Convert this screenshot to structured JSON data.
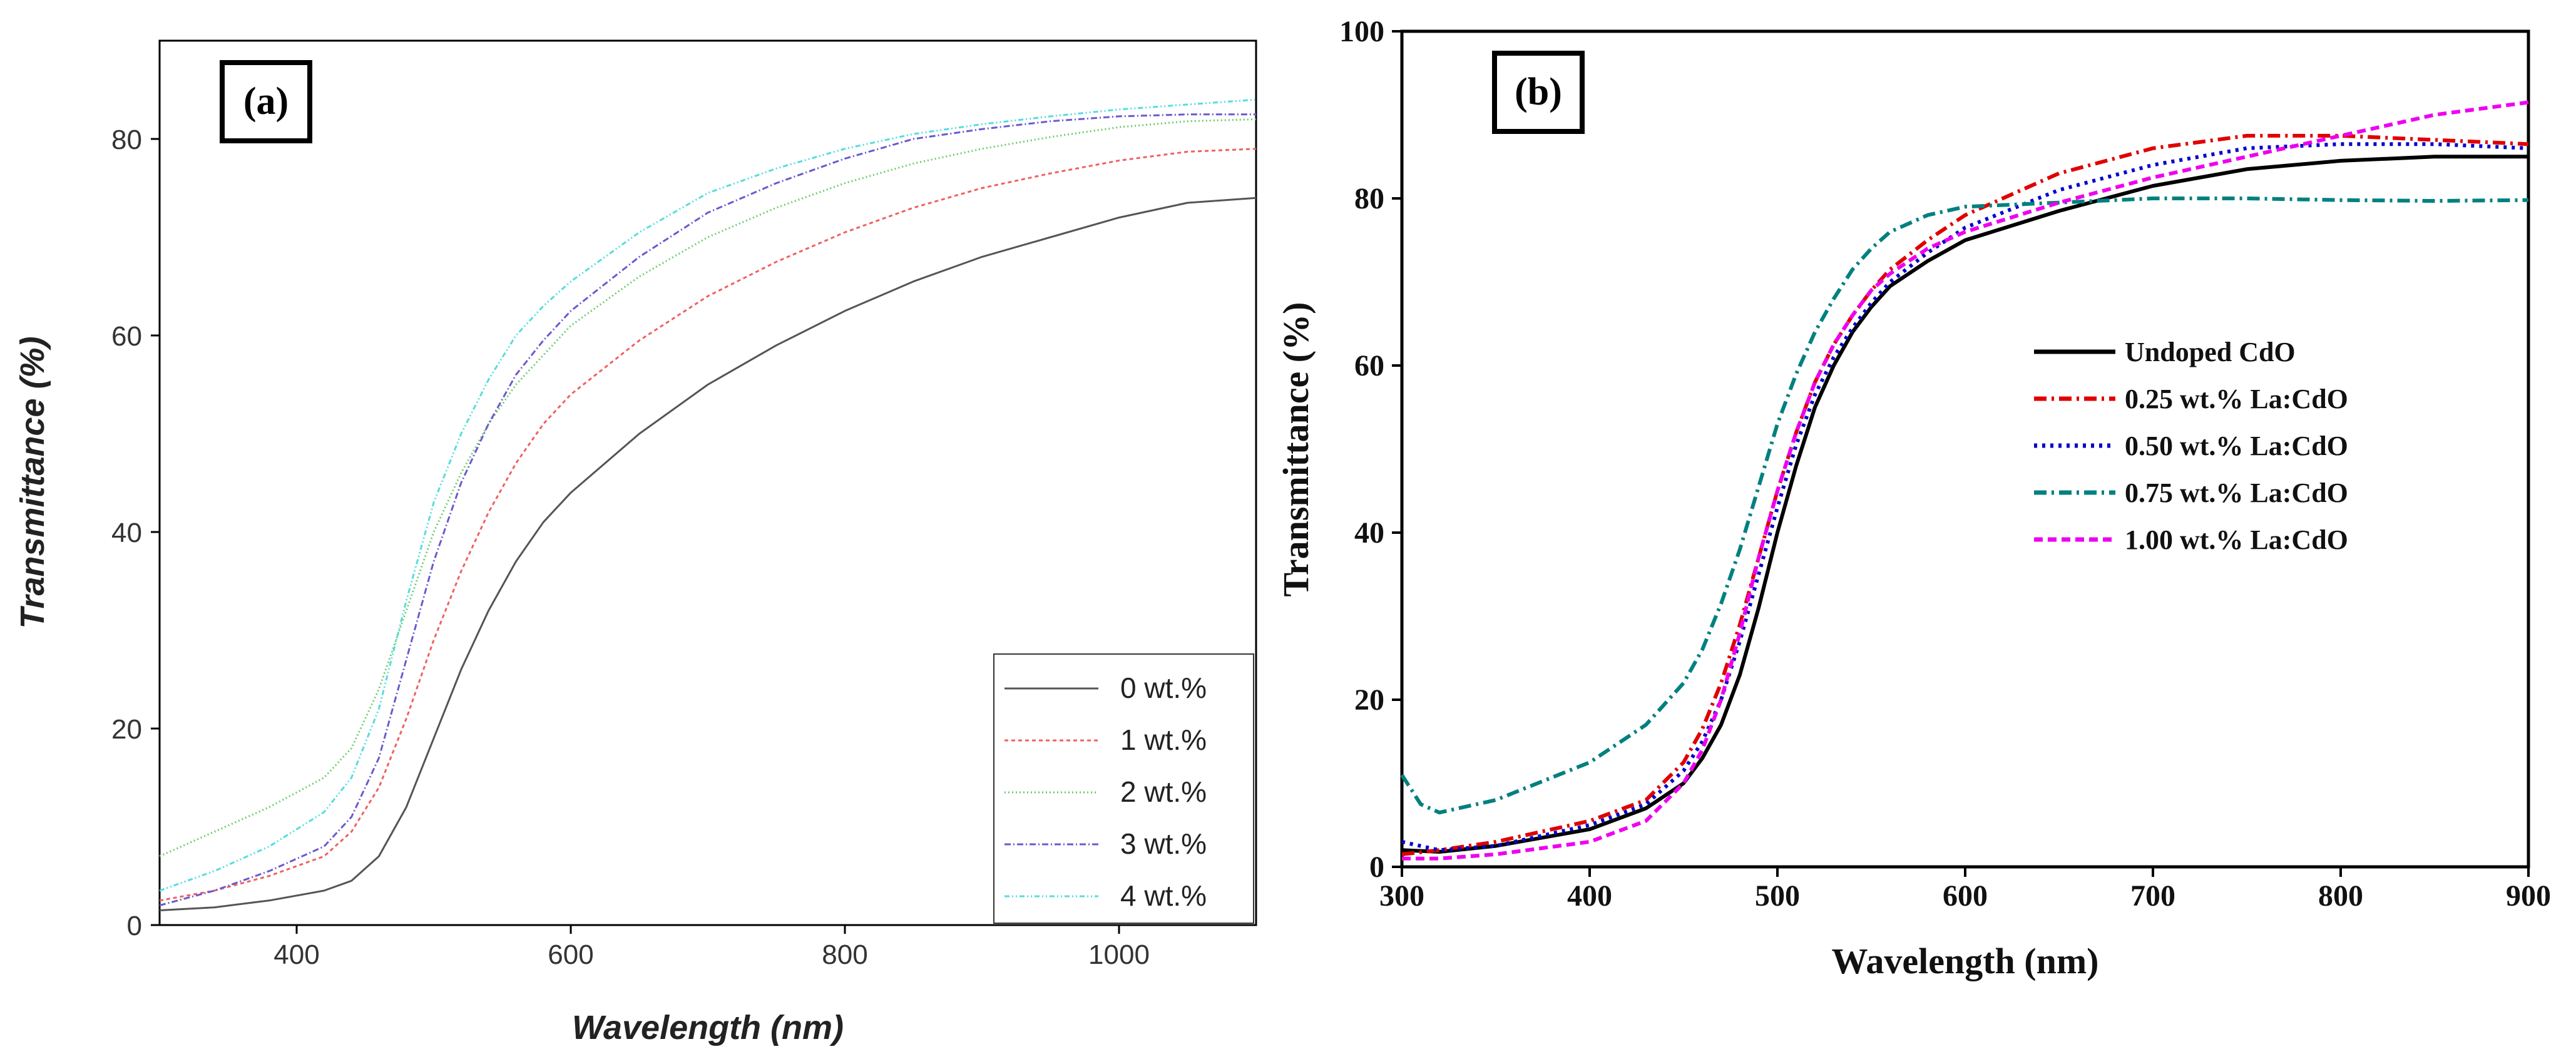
{
  "chart_data": [
    {
      "type": "line",
      "panel_label": "(a)",
      "title": "",
      "xlabel": "Wavelength (nm)",
      "ylabel": "Transmittance (%)",
      "xlim": [
        300,
        1100
      ],
      "ylim": [
        0,
        90
      ],
      "xticks": [
        400,
        600,
        800,
        1000
      ],
      "yticks": [
        0,
        20,
        40,
        60,
        80
      ],
      "grid": false,
      "legend_position": "bottom-right",
      "series": [
        {
          "name": "0 wt.%",
          "color": "#555555",
          "dash": "solid",
          "x": [
            300,
            340,
            380,
            420,
            440,
            460,
            480,
            500,
            520,
            540,
            560,
            580,
            600,
            650,
            700,
            750,
            800,
            850,
            900,
            950,
            1000,
            1050,
            1100
          ],
          "y": [
            1.5,
            1.8,
            2.5,
            3.5,
            4.5,
            7.0,
            12.0,
            19.0,
            26.0,
            32.0,
            37.0,
            41.0,
            44.0,
            50.0,
            55.0,
            59.0,
            62.5,
            65.5,
            68.0,
            70.0,
            72.0,
            73.5,
            74.0
          ]
        },
        {
          "name": "1 wt.%",
          "color": "#f06060",
          "dash": "6,5",
          "x": [
            300,
            340,
            380,
            420,
            440,
            460,
            480,
            500,
            520,
            540,
            560,
            580,
            600,
            650,
            700,
            750,
            800,
            850,
            900,
            950,
            1000,
            1050,
            1100
          ],
          "y": [
            2.5,
            3.5,
            5.0,
            7.0,
            9.5,
            14.0,
            21.0,
            29.0,
            36.0,
            42.0,
            47.0,
            51.0,
            54.0,
            59.5,
            64.0,
            67.5,
            70.5,
            73.0,
            75.0,
            76.5,
            77.8,
            78.7,
            79.0
          ]
        },
        {
          "name": "2 wt.%",
          "color": "#66cc66",
          "dash": "2,4",
          "x": [
            300,
            340,
            380,
            420,
            440,
            460,
            480,
            500,
            520,
            540,
            560,
            580,
            600,
            650,
            700,
            750,
            800,
            850,
            900,
            950,
            1000,
            1050,
            1100
          ],
          "y": [
            7.0,
            9.5,
            12.0,
            15.0,
            18.0,
            24.0,
            32.0,
            40.0,
            46.0,
            51.0,
            55.0,
            58.0,
            61.0,
            66.0,
            70.0,
            73.0,
            75.5,
            77.5,
            79.0,
            80.2,
            81.2,
            81.8,
            82.0
          ]
        },
        {
          "name": "3 wt.%",
          "color": "#6a5acd",
          "dash": "10,4,2,4",
          "x": [
            300,
            340,
            380,
            420,
            440,
            460,
            480,
            500,
            520,
            540,
            560,
            580,
            600,
            650,
            700,
            750,
            800,
            850,
            900,
            950,
            1000,
            1050,
            1100
          ],
          "y": [
            2.0,
            3.5,
            5.5,
            8.0,
            11.0,
            17.0,
            27.0,
            37.0,
            45.0,
            51.0,
            56.0,
            59.5,
            62.5,
            68.0,
            72.5,
            75.5,
            78.0,
            80.0,
            81.0,
            81.8,
            82.3,
            82.5,
            82.5
          ]
        },
        {
          "name": "4 wt.%",
          "color": "#55dddd",
          "dash": "8,4,2,4,2,4",
          "x": [
            300,
            340,
            380,
            420,
            440,
            460,
            480,
            500,
            520,
            540,
            560,
            580,
            600,
            650,
            700,
            750,
            800,
            850,
            900,
            950,
            1000,
            1050,
            1100
          ],
          "y": [
            3.5,
            5.5,
            8.0,
            11.5,
            15.0,
            22.0,
            33.0,
            43.0,
            50.0,
            55.5,
            60.0,
            63.0,
            65.5,
            70.5,
            74.5,
            77.0,
            79.0,
            80.5,
            81.5,
            82.3,
            83.0,
            83.5,
            84.0
          ]
        }
      ]
    },
    {
      "type": "line",
      "panel_label": "(b)",
      "title": "",
      "xlabel": "Wavelength (nm)",
      "ylabel": "Transmittance (%)",
      "xlim": [
        300,
        900
      ],
      "ylim": [
        0,
        100
      ],
      "xticks": [
        300,
        400,
        500,
        600,
        700,
        800,
        900
      ],
      "yticks": [
        0,
        20,
        40,
        60,
        80,
        100
      ],
      "grid": false,
      "legend_position": "center-right",
      "series": [
        {
          "name": "Undoped CdO",
          "color": "#000000",
          "dash": "solid",
          "x": [
            300,
            320,
            350,
            400,
            430,
            450,
            460,
            470,
            480,
            490,
            500,
            510,
            520,
            530,
            540,
            550,
            560,
            580,
            600,
            650,
            700,
            750,
            800,
            850,
            900
          ],
          "y": [
            2.0,
            1.8,
            2.5,
            4.5,
            7.0,
            10.0,
            13.0,
            17.0,
            23.0,
            31.0,
            40.0,
            48.0,
            55.0,
            60.0,
            64.0,
            67.0,
            69.5,
            72.5,
            75.0,
            78.5,
            81.5,
            83.5,
            84.5,
            85.0,
            85.0
          ]
        },
        {
          "name": "0.25 wt.% La:CdO",
          "color": "#e00000",
          "dash": "20,8,4,8",
          "x": [
            300,
            320,
            350,
            400,
            430,
            450,
            460,
            470,
            480,
            490,
            500,
            510,
            520,
            530,
            540,
            550,
            560,
            580,
            600,
            650,
            700,
            750,
            800,
            850,
            900
          ],
          "y": [
            1.5,
            2.0,
            3.0,
            5.5,
            8.0,
            12.5,
            16.5,
            22.0,
            29.0,
            37.0,
            45.0,
            52.0,
            58.0,
            62.5,
            66.0,
            69.0,
            71.5,
            75.0,
            78.0,
            83.0,
            86.0,
            87.5,
            87.5,
            87.0,
            86.5
          ]
        },
        {
          "name": "0.50 wt.% La:CdO",
          "color": "#0000cc",
          "dash": "5,8",
          "x": [
            300,
            320,
            350,
            400,
            430,
            450,
            460,
            470,
            480,
            490,
            500,
            510,
            520,
            530,
            540,
            550,
            560,
            580,
            600,
            650,
            700,
            750,
            800,
            850,
            900
          ],
          "y": [
            3.0,
            2.0,
            2.5,
            5.0,
            7.5,
            11.5,
            15.0,
            20.0,
            27.0,
            35.0,
            43.0,
            50.5,
            56.5,
            61.0,
            64.5,
            67.5,
            70.0,
            73.5,
            76.5,
            81.0,
            84.0,
            86.0,
            86.5,
            86.5,
            86.0
          ]
        },
        {
          "name": "0.75 wt.% La:CdO",
          "color": "#008080",
          "dash": "20,8,4,8",
          "x": [
            300,
            310,
            320,
            350,
            400,
            430,
            450,
            460,
            470,
            480,
            490,
            500,
            510,
            520,
            530,
            540,
            550,
            560,
            580,
            600,
            650,
            700,
            750,
            800,
            850,
            900
          ],
          "y": [
            11.0,
            7.5,
            6.5,
            8.0,
            12.5,
            17.0,
            22.0,
            26.0,
            31.5,
            38.0,
            45.5,
            53.0,
            59.0,
            64.0,
            68.0,
            71.5,
            74.0,
            76.0,
            78.0,
            79.0,
            79.5,
            80.0,
            80.0,
            79.8,
            79.7,
            79.8
          ]
        },
        {
          "name": "1.00 wt.% La:CdO",
          "color": "#ee00ee",
          "dash": "14,8",
          "x": [
            300,
            320,
            350,
            400,
            430,
            450,
            460,
            470,
            480,
            490,
            500,
            510,
            520,
            530,
            540,
            550,
            560,
            580,
            600,
            650,
            700,
            750,
            800,
            850,
            900
          ],
          "y": [
            1.0,
            1.0,
            1.5,
            3.0,
            5.5,
            10.0,
            14.0,
            20.0,
            28.0,
            37.0,
            45.0,
            52.0,
            58.0,
            62.5,
            66.0,
            69.0,
            71.0,
            74.0,
            76.0,
            79.5,
            82.5,
            85.0,
            87.5,
            90.0,
            91.5
          ]
        }
      ]
    }
  ]
}
